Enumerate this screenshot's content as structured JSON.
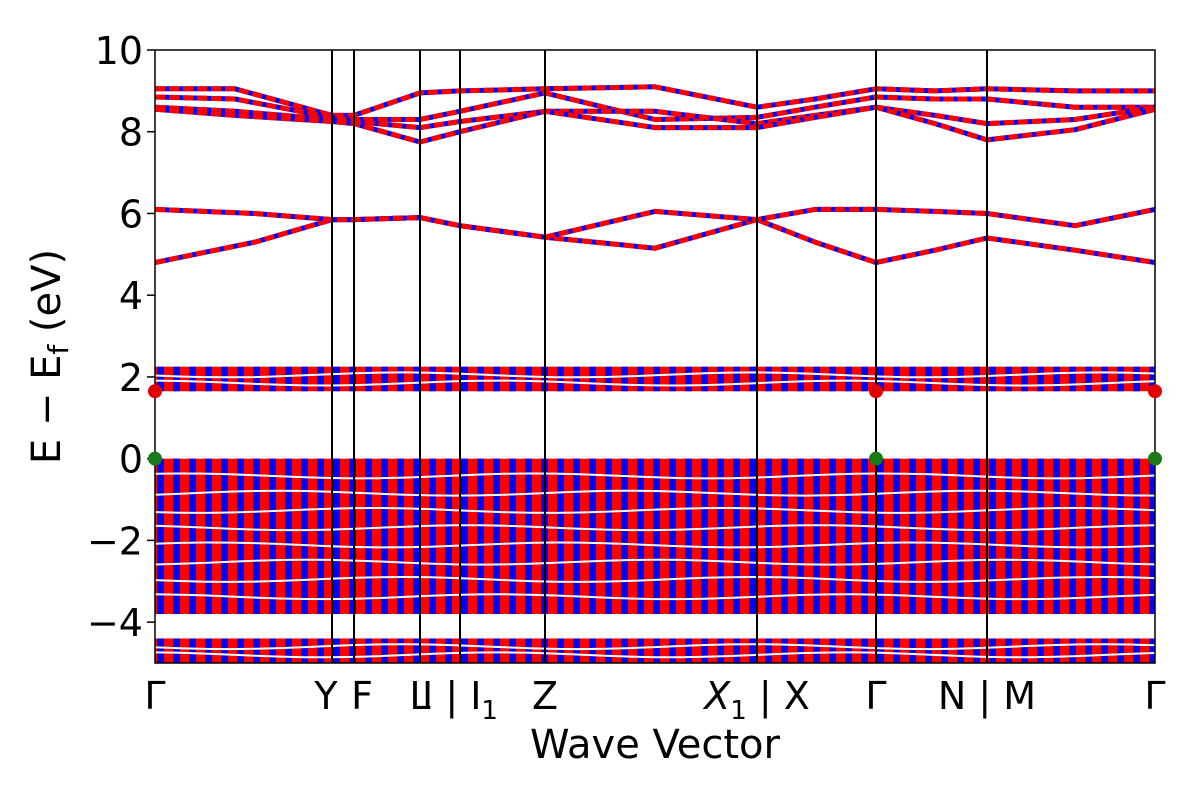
{
  "chart_data": {
    "type": "line",
    "xlabel": "Wave Vector",
    "ylabel": "E − E",
    "ylabel_sub": "f",
    "ylabel_unit": "(eV)",
    "ylim": [
      -5,
      10
    ],
    "yticks": [
      -4,
      -2,
      0,
      2,
      4,
      6,
      8,
      10
    ],
    "ytick_labels": [
      "−4",
      "−2",
      "0",
      "2",
      "4",
      "6",
      "8",
      "10"
    ],
    "xlim": [
      0,
      1
    ],
    "grid": false,
    "high_symmetry_points": [
      {
        "x": 0.0,
        "label": "Γ"
      },
      {
        "x": 0.177,
        "label": "Y"
      },
      {
        "x": 0.199,
        "label": "F"
      },
      {
        "x": 0.265,
        "label": "L"
      },
      {
        "x": 0.305,
        "label": "I | I₁",
        "main": "I | I",
        "sub": "1"
      },
      {
        "x": 0.39,
        "label": "Z"
      },
      {
        "x": 0.602,
        "label": "X₁ | X",
        "main_italic": "X",
        "sub": "1",
        "tail": " | X"
      },
      {
        "x": 0.721,
        "label": "Γ"
      },
      {
        "x": 0.832,
        "label": "N | M"
      },
      {
        "x": 1.0,
        "label": "Γ"
      }
    ],
    "line_colors": {
      "dashed_over": "#ff0000",
      "under": "#0000ff"
    },
    "band_regions": [
      {
        "name": "valence block",
        "ymin": -3.8,
        "ymax": 0.0
      },
      {
        "name": "lower band group",
        "ymin": -5.0,
        "ymax": -4.4
      },
      {
        "name": "narrow band group",
        "ymin": 1.65,
        "ymax": 2.25
      }
    ],
    "series": [
      {
        "x": [
          0,
          0.1,
          0.177,
          0.199,
          0.265,
          0.305,
          0.39,
          0.5,
          0.602,
          0.66,
          0.721,
          0.78,
          0.832,
          0.92,
          1.0
        ],
        "y": [
          4.8,
          5.3,
          5.85,
          5.85,
          5.9,
          5.7,
          5.42,
          5.15,
          5.85,
          5.3,
          4.8,
          5.1,
          5.4,
          5.1,
          4.8
        ]
      },
      {
        "x": [
          0,
          0.1,
          0.177,
          0.199,
          0.265,
          0.305,
          0.39,
          0.5,
          0.602,
          0.66,
          0.721,
          0.78,
          0.832,
          0.92,
          1.0
        ],
        "y": [
          6.1,
          6.0,
          5.85,
          5.85,
          5.9,
          5.7,
          5.42,
          6.05,
          5.85,
          6.1,
          6.1,
          6.05,
          6.0,
          5.7,
          6.1
        ]
      },
      {
        "x": [
          0,
          0.08,
          0.177,
          0.199,
          0.265,
          0.305,
          0.39,
          0.5,
          0.602,
          0.66,
          0.721,
          0.78,
          0.832,
          0.92,
          1.0
        ],
        "y": [
          9.05,
          9.05,
          8.4,
          8.4,
          8.95,
          9.0,
          9.05,
          9.1,
          8.6,
          8.8,
          9.05,
          9.0,
          9.05,
          9.0,
          9.0
        ]
      },
      {
        "x": [
          0,
          0.08,
          0.177,
          0.199,
          0.265,
          0.305,
          0.39,
          0.5,
          0.602,
          0.66,
          0.721,
          0.78,
          0.832,
          0.92,
          1.0
        ],
        "y": [
          8.85,
          8.8,
          8.35,
          8.3,
          8.3,
          8.5,
          8.95,
          8.3,
          8.35,
          8.6,
          8.85,
          8.8,
          8.8,
          8.6,
          8.6
        ]
      },
      {
        "x": [
          0,
          0.08,
          0.177,
          0.199,
          0.265,
          0.305,
          0.39,
          0.5,
          0.602,
          0.66,
          0.721,
          0.78,
          0.832,
          0.92,
          1.0
        ],
        "y": [
          8.6,
          8.5,
          8.3,
          8.25,
          8.1,
          8.25,
          8.5,
          8.5,
          8.2,
          8.4,
          8.6,
          8.4,
          8.2,
          8.3,
          8.6
        ]
      },
      {
        "x": [
          0,
          0.08,
          0.177,
          0.199,
          0.265,
          0.305,
          0.39,
          0.5,
          0.602,
          0.66,
          0.721,
          0.78,
          0.832,
          0.92,
          1.0
        ],
        "y": [
          8.55,
          8.4,
          8.25,
          8.2,
          7.75,
          8.0,
          8.5,
          8.1,
          8.1,
          8.35,
          8.6,
          8.2,
          7.8,
          8.05,
          8.55
        ]
      }
    ]
  }
}
